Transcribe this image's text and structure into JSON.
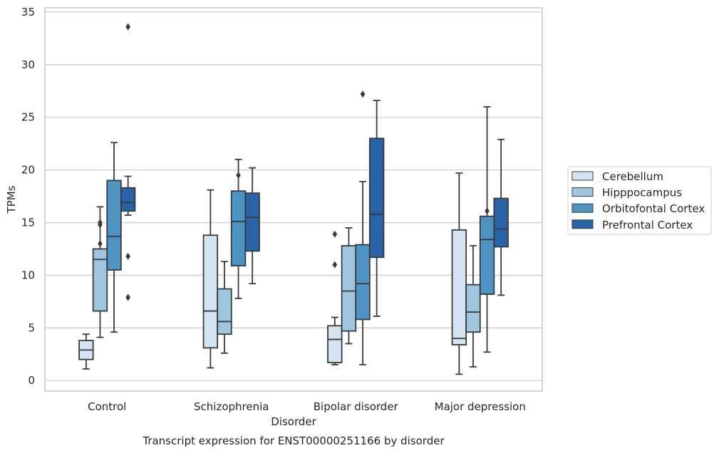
{
  "chart_data": {
    "type": "box",
    "title": "",
    "caption": "Transcript expression for ENST00000251166 by disorder",
    "xlabel": "Disorder",
    "ylabel": "TPMs",
    "ylim": [
      -1,
      35.4
    ],
    "yticks": [
      0,
      5,
      10,
      15,
      20,
      25,
      30,
      35
    ],
    "grid": "horizontal",
    "legend_position": "right",
    "categories": [
      "Control",
      "Schizophrenia",
      "Bipolar disorder",
      "Major depression"
    ],
    "series": [
      {
        "name": "Cerebellum",
        "color": "#d3e3f2",
        "boxes": [
          {
            "whisker_low": 1.1,
            "q1": 2.0,
            "median": 2.9,
            "q3": 3.8,
            "whisker_high": 4.4,
            "outliers": []
          },
          {
            "whisker_low": 1.2,
            "q1": 3.1,
            "median": 6.6,
            "q3": 13.8,
            "whisker_high": 18.1,
            "outliers": []
          },
          {
            "whisker_low": 1.5,
            "q1": 1.7,
            "median": 3.9,
            "q3": 5.2,
            "whisker_high": 6.0,
            "outliers": [
              11.0,
              13.9
            ]
          },
          {
            "whisker_low": 0.6,
            "q1": 3.4,
            "median": 4.0,
            "q3": 14.3,
            "whisker_high": 19.7,
            "outliers": []
          }
        ]
      },
      {
        "name": "Hipppocampus",
        "color": "#9ec6df",
        "boxes": [
          {
            "whisker_low": 4.1,
            "q1": 6.6,
            "median": 11.5,
            "q3": 12.5,
            "whisker_high": 16.5,
            "outliers": [
              13.0,
              14.8,
              15.0
            ]
          },
          {
            "whisker_low": 2.6,
            "q1": 4.4,
            "median": 5.6,
            "q3": 8.7,
            "whisker_high": 11.3,
            "outliers": []
          },
          {
            "whisker_low": 3.5,
            "q1": 4.7,
            "median": 8.5,
            "q3": 12.8,
            "whisker_high": 14.5,
            "outliers": []
          },
          {
            "whisker_low": 1.3,
            "q1": 4.6,
            "median": 6.5,
            "q3": 9.1,
            "whisker_high": 12.8,
            "outliers": []
          }
        ]
      },
      {
        "name": "Orbitofontal Cortex",
        "color": "#4d93c4",
        "boxes": [
          {
            "whisker_low": 4.6,
            "q1": 10.5,
            "median": 13.7,
            "q3": 19.0,
            "whisker_high": 22.6,
            "outliers": []
          },
          {
            "whisker_low": 7.8,
            "q1": 10.9,
            "median": 15.1,
            "q3": 18.0,
            "whisker_high": 21.0,
            "outliers": [
              19.5
            ]
          },
          {
            "whisker_low": 1.5,
            "q1": 5.8,
            "median": 9.2,
            "q3": 12.9,
            "whisker_high": 18.9,
            "outliers": [
              27.2
            ]
          },
          {
            "whisker_low": 2.7,
            "q1": 8.2,
            "median": 13.4,
            "q3": 15.6,
            "whisker_high": 26.0,
            "outliers": [
              16.1
            ]
          }
        ]
      },
      {
        "name": "Prefrontal Cortex",
        "color": "#2763a6",
        "boxes": [
          {
            "whisker_low": 15.7,
            "q1": 16.1,
            "median": 16.9,
            "q3": 18.3,
            "whisker_high": 19.4,
            "outliers": [
              7.9,
              11.8,
              33.6
            ]
          },
          {
            "whisker_low": 9.2,
            "q1": 12.3,
            "median": 15.5,
            "q3": 17.8,
            "whisker_high": 20.2,
            "outliers": []
          },
          {
            "whisker_low": 6.1,
            "q1": 11.7,
            "median": 15.8,
            "q3": 23.0,
            "whisker_high": 26.6,
            "outliers": []
          },
          {
            "whisker_low": 8.1,
            "q1": 12.7,
            "median": 14.4,
            "q3": 17.3,
            "whisker_high": 22.9,
            "outliers": []
          }
        ]
      }
    ]
  }
}
